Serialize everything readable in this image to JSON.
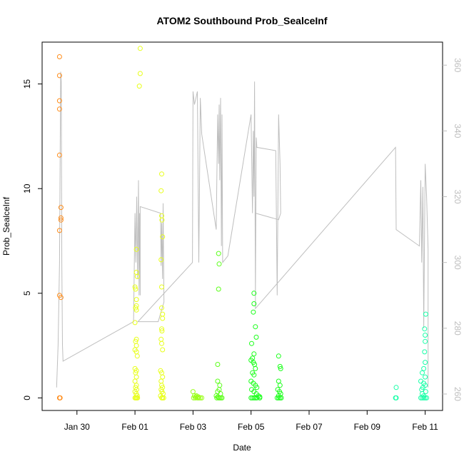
{
  "chart_data": {
    "type": "scatter",
    "title": "ATOM2 Southbound Prob_SealceInf",
    "xlabel": "Date",
    "ylabel": "Prob_SealceInf",
    "x_ticks": [
      "Jan 30",
      "Feb 01",
      "Feb 03",
      "Feb 05",
      "Feb 07",
      "Feb 09",
      "Feb 11"
    ],
    "x_tick_days": [
      -2,
      0,
      2,
      4,
      6,
      8,
      10
    ],
    "xlim_days": [
      -3.2,
      10.6
    ],
    "ylim": [
      -0.6,
      17.0
    ],
    "y_ticks": [
      0,
      5,
      10,
      15
    ],
    "y2lim": [
      255,
      367
    ],
    "y2_ticks": [
      260,
      280,
      300,
      320,
      340,
      360
    ],
    "grid": false,
    "colors": {
      "line": "#bebebe",
      "axis": "#000000",
      "right_axis": "#bdbdbd"
    },
    "series": [
      {
        "color": "#ff8c1a",
        "points": [
          [
            -2.6,
            16.3
          ],
          [
            -2.6,
            15.4
          ],
          [
            -2.6,
            14.2
          ],
          [
            -2.6,
            13.8
          ],
          [
            -2.6,
            11.6
          ],
          [
            -2.55,
            9.1
          ],
          [
            -2.55,
            8.6
          ],
          [
            -2.55,
            8.5
          ],
          [
            -2.6,
            8.0
          ],
          [
            -2.6,
            4.9
          ],
          [
            -2.55,
            4.8
          ],
          [
            -2.6,
            0.0
          ],
          [
            -2.58,
            0.0
          ]
        ]
      },
      {
        "color": "#e8ff1a",
        "points": [
          [
            0.18,
            16.7
          ],
          [
            0.18,
            15.5
          ],
          [
            0.15,
            14.9
          ],
          [
            0.05,
            7.1
          ],
          [
            0.05,
            6.0
          ],
          [
            0.08,
            5.8
          ],
          [
            0.0,
            5.3
          ],
          [
            0.02,
            5.2
          ],
          [
            0.05,
            4.7
          ],
          [
            0.05,
            4.4
          ],
          [
            0.02,
            4.3
          ],
          [
            0.05,
            4.2
          ],
          [
            0.0,
            3.6
          ],
          [
            0.05,
            2.8
          ],
          [
            0.02,
            2.7
          ],
          [
            0.05,
            2.5
          ],
          [
            0.0,
            2.3
          ],
          [
            0.05,
            2.2
          ],
          [
            0.08,
            2.0
          ],
          [
            0.0,
            1.4
          ],
          [
            0.05,
            1.3
          ],
          [
            0.02,
            1.2
          ],
          [
            0.05,
            1.0
          ],
          [
            0.0,
            0.8
          ],
          [
            0.05,
            0.6
          ],
          [
            0.02,
            0.5
          ],
          [
            0.06,
            0.4
          ],
          [
            0.0,
            0.3
          ],
          [
            0.04,
            0.2
          ],
          [
            0.08,
            0.1
          ],
          [
            0.0,
            0.0
          ],
          [
            0.03,
            0.0
          ],
          [
            0.06,
            0.0
          ],
          [
            0.09,
            0.0
          ],
          [
            0.92,
            10.7
          ],
          [
            0.9,
            9.9
          ],
          [
            0.92,
            8.7
          ],
          [
            0.93,
            8.5
          ],
          [
            0.95,
            7.7
          ],
          [
            0.9,
            6.6
          ],
          [
            0.92,
            5.3
          ],
          [
            0.92,
            4.3
          ],
          [
            0.95,
            4.0
          ],
          [
            0.95,
            3.8
          ],
          [
            0.92,
            3.3
          ],
          [
            0.93,
            3.2
          ],
          [
            0.9,
            2.8
          ],
          [
            0.92,
            2.6
          ],
          [
            0.95,
            2.3
          ],
          [
            0.88,
            1.3
          ],
          [
            0.92,
            1.2
          ],
          [
            0.95,
            1.0
          ],
          [
            0.9,
            0.8
          ],
          [
            0.92,
            0.6
          ],
          [
            0.95,
            0.5
          ],
          [
            0.9,
            0.4
          ],
          [
            0.93,
            0.3
          ],
          [
            0.97,
            0.2
          ],
          [
            0.88,
            0.1
          ],
          [
            0.92,
            0.0
          ],
          [
            0.95,
            0.0
          ],
          [
            0.99,
            0.0
          ]
        ]
      },
      {
        "color": "#9aff1a",
        "points": [
          [
            2.0,
            0.3
          ],
          [
            2.05,
            0.1
          ],
          [
            2.1,
            0.05
          ],
          [
            2.15,
            0.0
          ],
          [
            2.2,
            0.0
          ],
          [
            2.25,
            0.0
          ],
          [
            2.3,
            0.0
          ],
          [
            2.02,
            0.0
          ],
          [
            2.08,
            0.0
          ],
          [
            2.12,
            0.1
          ],
          [
            2.18,
            0.05
          ]
        ]
      },
      {
        "color": "#5cff1a",
        "points": [
          [
            2.88,
            6.9
          ],
          [
            2.9,
            6.4
          ],
          [
            2.88,
            5.2
          ],
          [
            2.85,
            1.6
          ],
          [
            2.85,
            0.8
          ],
          [
            2.92,
            0.6
          ],
          [
            2.9,
            0.4
          ],
          [
            2.85,
            0.3
          ],
          [
            2.95,
            0.2
          ],
          [
            2.8,
            0.1
          ],
          [
            2.88,
            0.0
          ],
          [
            2.92,
            0.0
          ],
          [
            2.96,
            0.0
          ],
          [
            3.0,
            0.0
          ],
          [
            2.82,
            0.0
          ],
          [
            2.86,
            0.05
          ]
        ]
      },
      {
        "color": "#1aff1a",
        "points": [
          [
            4.1,
            5.0
          ],
          [
            4.1,
            4.5
          ],
          [
            4.08,
            4.1
          ],
          [
            4.15,
            3.4
          ],
          [
            4.18,
            2.9
          ],
          [
            4.02,
            2.6
          ],
          [
            4.1,
            2.1
          ],
          [
            4.05,
            1.9
          ],
          [
            4.0,
            1.8
          ],
          [
            4.08,
            1.7
          ],
          [
            4.12,
            1.6
          ],
          [
            4.15,
            1.4
          ],
          [
            4.05,
            1.2
          ],
          [
            4.1,
            1.1
          ],
          [
            4.0,
            0.8
          ],
          [
            4.08,
            0.7
          ],
          [
            4.15,
            0.6
          ],
          [
            4.2,
            0.5
          ],
          [
            4.02,
            0.4
          ],
          [
            4.1,
            0.3
          ],
          [
            4.18,
            0.2
          ],
          [
            4.25,
            0.1
          ],
          [
            4.3,
            0.05
          ],
          [
            4.0,
            0.0
          ],
          [
            4.05,
            0.0
          ],
          [
            4.1,
            0.0
          ],
          [
            4.15,
            0.0
          ],
          [
            4.2,
            0.0
          ],
          [
            4.3,
            0.0
          ],
          [
            4.95,
            2.0
          ],
          [
            5.0,
            1.5
          ],
          [
            5.02,
            1.4
          ],
          [
            4.95,
            0.8
          ],
          [
            5.0,
            0.6
          ],
          [
            4.92,
            0.4
          ],
          [
            4.98,
            0.3
          ],
          [
            5.02,
            0.2
          ],
          [
            4.95,
            0.1
          ],
          [
            4.9,
            0.0
          ],
          [
            4.95,
            0.0
          ],
          [
            5.0,
            0.0
          ],
          [
            5.04,
            0.0
          ]
        ]
      },
      {
        "color": "#1affa8",
        "points": [
          [
            10.02,
            4.0
          ],
          [
            9.98,
            3.3
          ],
          [
            10.0,
            3.0
          ],
          [
            10.0,
            2.7
          ],
          [
            9.98,
            2.2
          ],
          [
            10.0,
            1.7
          ],
          [
            9.95,
            1.4
          ],
          [
            9.9,
            1.2
          ],
          [
            10.0,
            1.0
          ],
          [
            9.85,
            0.8
          ],
          [
            9.95,
            0.7
          ],
          [
            10.0,
            0.6
          ],
          [
            9.92,
            0.5
          ],
          [
            9.88,
            0.4
          ],
          [
            10.02,
            0.3
          ],
          [
            9.9,
            0.2
          ],
          [
            9.95,
            0.1
          ],
          [
            9.85,
            0.0
          ],
          [
            9.9,
            0.0
          ],
          [
            9.95,
            0.0
          ],
          [
            10.0,
            0.0
          ],
          [
            10.05,
            0.0
          ],
          [
            9.0,
            0.5
          ],
          [
            9.0,
            0.0
          ],
          [
            8.98,
            0.0
          ]
        ]
      }
    ],
    "line_series": {
      "axis": "right",
      "color": "#bebebe",
      "points": [
        [
          -2.7,
          262
        ],
        [
          -2.65,
          275
        ],
        [
          -2.6,
          300
        ],
        [
          -2.58,
          330
        ],
        [
          -2.56,
          358
        ],
        [
          -2.54,
          355
        ],
        [
          -2.52,
          300
        ],
        [
          -2.5,
          275
        ],
        [
          -2.48,
          270
        ],
        [
          -0.05,
          282
        ],
        [
          0.0,
          315
        ],
        [
          0.03,
          300
        ],
        [
          0.06,
          320
        ],
        [
          0.09,
          295
        ],
        [
          0.12,
          325
        ],
        [
          0.14,
          290
        ],
        [
          0.16,
          315
        ],
        [
          0.18,
          290
        ],
        [
          0.18,
          317
        ],
        [
          0.88,
          315
        ],
        [
          0.9,
          299
        ],
        [
          0.92,
          312
        ],
        [
          0.95,
          295
        ],
        [
          0.97,
          318
        ],
        [
          1.0,
          288
        ],
        [
          0.8,
          282
        ],
        [
          0.1,
          282
        ],
        [
          1.98,
          300
        ],
        [
          2.0,
          352
        ],
        [
          2.05,
          348
        ],
        [
          2.1,
          350
        ],
        [
          2.15,
          352
        ],
        [
          2.2,
          300
        ],
        [
          2.25,
          350
        ],
        [
          2.3,
          339
        ],
        [
          2.8,
          310
        ],
        [
          2.85,
          345
        ],
        [
          2.88,
          330
        ],
        [
          2.9,
          348
        ],
        [
          2.92,
          325
        ],
        [
          2.95,
          350
        ],
        [
          2.98,
          305
        ],
        [
          3.0,
          345
        ],
        [
          3.02,
          300
        ],
        [
          3.2,
          302
        ],
        [
          4.0,
          345
        ],
        [
          4.05,
          315
        ],
        [
          4.08,
          340
        ],
        [
          4.1,
          320
        ],
        [
          4.12,
          355
        ],
        [
          4.15,
          290
        ],
        [
          4.18,
          338
        ],
        [
          4.2,
          335
        ],
        [
          4.85,
          334
        ],
        [
          4.9,
          290
        ],
        [
          4.95,
          345
        ],
        [
          5.0,
          330
        ],
        [
          5.02,
          315
        ],
        [
          4.95,
          313
        ],
        [
          4.15,
          315
        ],
        [
          4.15,
          286
        ],
        [
          8.98,
          335
        ],
        [
          9.0,
          310
        ],
        [
          9.8,
          305
        ],
        [
          9.85,
          325
        ],
        [
          9.88,
          300
        ],
        [
          9.92,
          323
        ],
        [
          9.95,
          280
        ],
        [
          10.0,
          330
        ],
        [
          10.05,
          320
        ],
        [
          10.1,
          304
        ],
        [
          10.1,
          262
        ]
      ]
    }
  }
}
